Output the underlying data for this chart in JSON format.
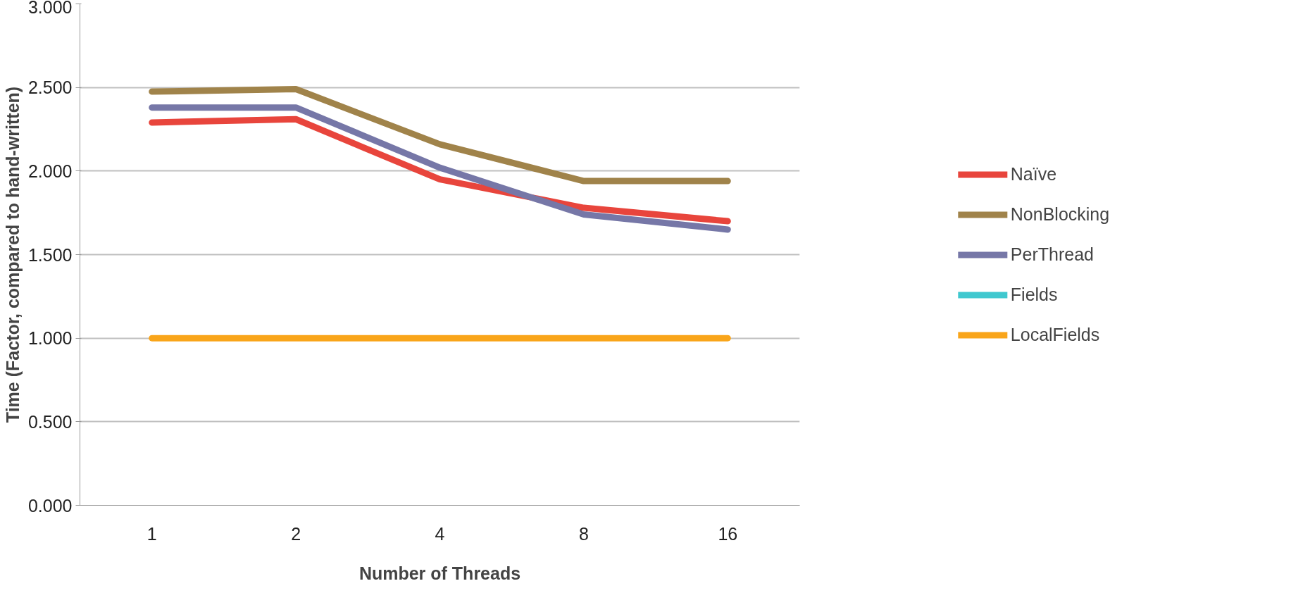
{
  "chart_data": {
    "type": "line",
    "xlabel": "Number of Threads",
    "ylabel": "Time (Factor, compared to hand-written)",
    "categories": [
      "1",
      "2",
      "4",
      "8",
      "16"
    ],
    "series": [
      {
        "name": "Naïve",
        "color": "#e8453c",
        "values": [
          2.29,
          2.31,
          1.95,
          1.78,
          1.7
        ]
      },
      {
        "name": "NonBlocking",
        "color": "#a0834a",
        "values": [
          2.475,
          2.49,
          2.16,
          1.94,
          1.94
        ]
      },
      {
        "name": "PerThread",
        "color": "#7677a7",
        "values": [
          2.38,
          2.38,
          2.02,
          1.74,
          1.65
        ]
      },
      {
        "name": "Fields",
        "color": "#3fc8cf",
        "values": [
          null,
          null,
          null,
          null,
          null
        ]
      },
      {
        "name": "LocalFields",
        "color": "#f9a51a",
        "values": [
          1.0,
          1.0,
          1.0,
          1.0,
          1.0
        ]
      }
    ],
    "ylim": [
      0,
      3
    ],
    "yticks": [
      {
        "value": 0,
        "label": "0.000"
      },
      {
        "value": 0.5,
        "label": "0.500"
      },
      {
        "value": 1,
        "label": "1.000"
      },
      {
        "value": 1.5,
        "label": "1.500"
      },
      {
        "value": 2,
        "label": "2.000"
      },
      {
        "value": 2.5,
        "label": "2.500"
      },
      {
        "value": 3,
        "label": "3.000"
      }
    ],
    "grid": "y",
    "legend": "right",
    "marker": "none",
    "line_style": "solid"
  }
}
